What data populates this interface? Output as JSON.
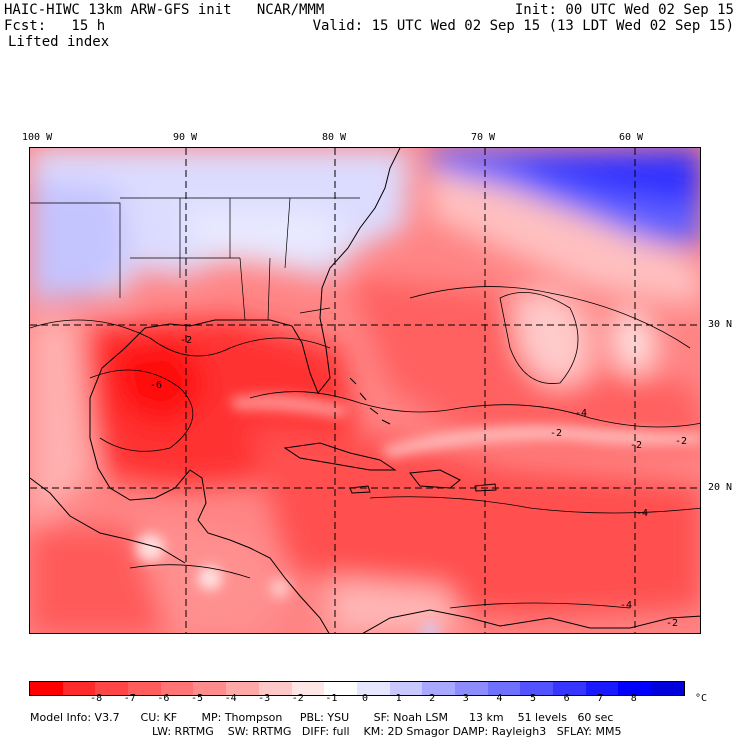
{
  "header": {
    "title": "HAIC-HIWC 13km ARW-GFS init   NCAR/MMM",
    "init": "Init: 00 UTC Wed 02 Sep 15",
    "fcst": "Fcst:   15 h",
    "valid": "Valid: 15 UTC Wed 02 Sep 15 (13 LDT Wed 02 Sep 15)",
    "field": "Lifted index"
  },
  "map": {
    "lon_labels": [
      "100 W",
      "90 W",
      "80 W",
      "70 W",
      "60 W"
    ],
    "lat_labels": [
      "30 N",
      "20 N"
    ],
    "contour_labels": [
      "-2",
      "-2",
      "-4",
      "-2",
      "-4",
      "-2",
      "-4",
      "-6",
      "-2"
    ]
  },
  "colorbar": {
    "unit": "°C",
    "ticks": [
      "-8",
      "-7",
      "-6",
      "-5",
      "-4",
      "-3",
      "-2",
      "-1",
      "0",
      "1",
      "2",
      "3",
      "4",
      "5",
      "6",
      "7",
      "8"
    ],
    "colors": [
      "#ff0000",
      "#ff2a2a",
      "#ff4646",
      "#ff5c5c",
      "#ff7474",
      "#ff8c8c",
      "#ffa8a8",
      "#ffc8c8",
      "#ffe6e6",
      "#ffffff",
      "#e6e6ff",
      "#c8c8ff",
      "#a8a8ff",
      "#8c8cff",
      "#7070ff",
      "#5252ff",
      "#3636ff",
      "#1a1aff",
      "#0000ff",
      "#0000dd"
    ]
  },
  "footer": {
    "line1": "Model Info: V3.7      CU: KF       MP: Thompson     PBL: YSU       SF: Noah LSM      13 km    51 levels   60 sec",
    "line2": "LW: RRTMG    SW: RRTMG   DIFF: full    KM: 2D Smagor DAMP: Rayleigh3   SFLAY: MM5"
  }
}
